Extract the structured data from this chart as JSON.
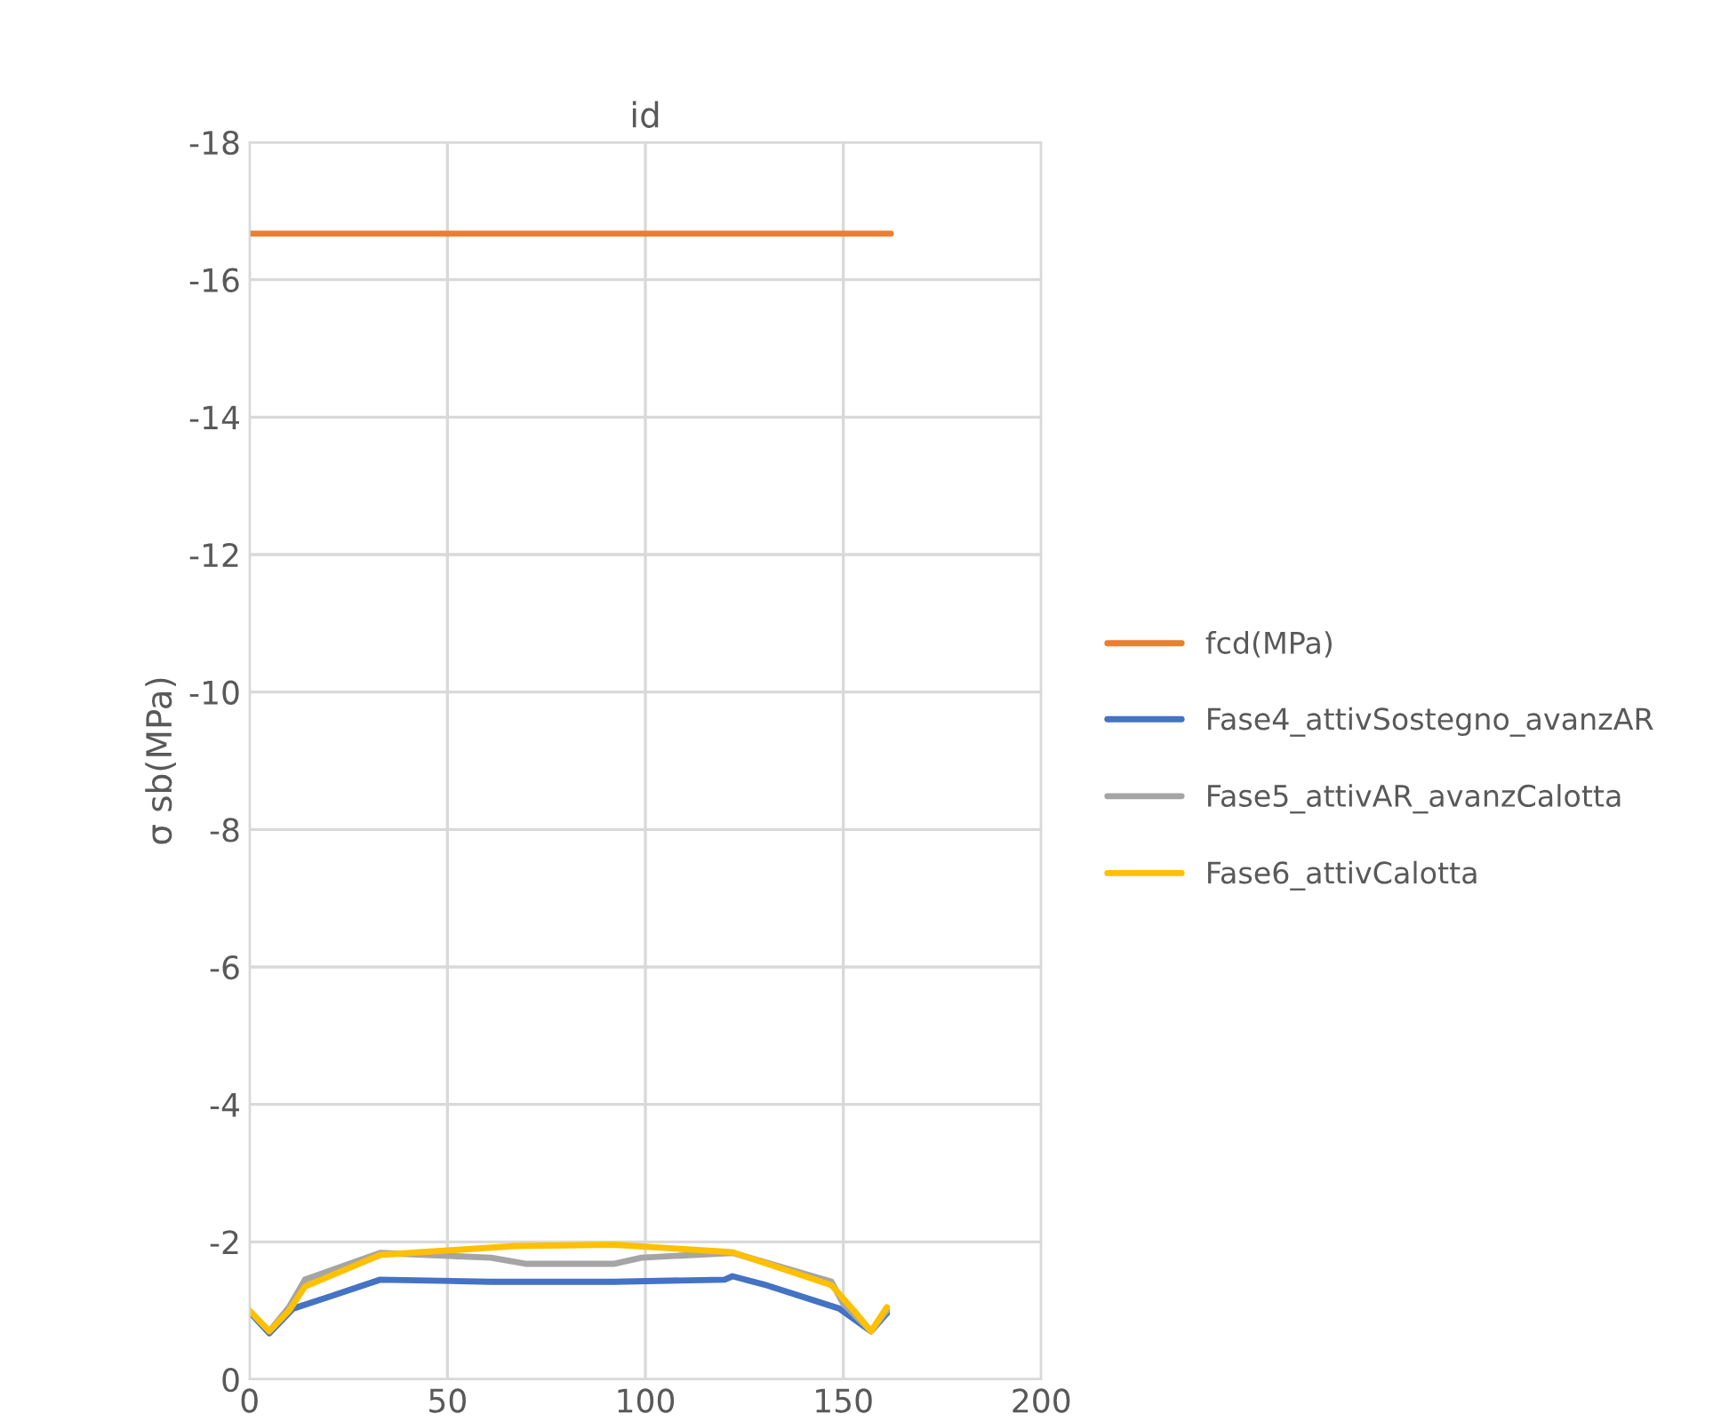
{
  "chart_data": {
    "type": "line",
    "title": "id",
    "ylabel": "σ sb(MPa)",
    "xlim": [
      0,
      200
    ],
    "xticks": [
      0,
      50,
      100,
      150,
      200
    ],
    "ylim": [
      0,
      -18
    ],
    "yticks": [
      0,
      -2,
      -4,
      -6,
      -8,
      -10,
      -12,
      -14,
      -16,
      -18
    ],
    "grid": true,
    "legend": "right",
    "marker": "none",
    "line_style": "solid",
    "series": [
      {
        "name": "fcd(MPa)",
        "color": "#ed7d31",
        "x": [
          0,
          162
        ],
        "values": [
          -16.67,
          -16.67
        ]
      },
      {
        "name": "Fase4_attivSostegno_avanzAR",
        "color": "#4472c4",
        "x": [
          0,
          5,
          11,
          20,
          33,
          61,
          92,
          120,
          122,
          130,
          149,
          157,
          161
        ],
        "values": [
          -0.98,
          -0.67,
          -1.03,
          -1.2,
          -1.45,
          -1.42,
          -1.42,
          -1.45,
          -1.5,
          -1.38,
          -1.03,
          -0.7,
          -0.96
        ]
      },
      {
        "name": "Fase5_attivAR_avanzCalotta",
        "color": "#a5a5a5",
        "x": [
          5,
          10,
          14,
          33,
          61,
          70,
          92,
          99,
          122,
          147,
          150,
          157,
          161
        ],
        "values": [
          -0.7,
          -1.05,
          -1.45,
          -1.84,
          -1.77,
          -1.68,
          -1.68,
          -1.77,
          -1.84,
          -1.42,
          -1.1,
          -0.7,
          -1.0
        ]
      },
      {
        "name": "Fase6_attivCalotta",
        "color": "#ffc000",
        "x": [
          0,
          5,
          10,
          14,
          33,
          67,
          92,
          122,
          147,
          153,
          157,
          161
        ],
        "values": [
          -1.0,
          -0.7,
          -1.0,
          -1.35,
          -1.81,
          -1.94,
          -1.96,
          -1.85,
          -1.37,
          -0.98,
          -0.7,
          -1.05
        ]
      }
    ]
  }
}
